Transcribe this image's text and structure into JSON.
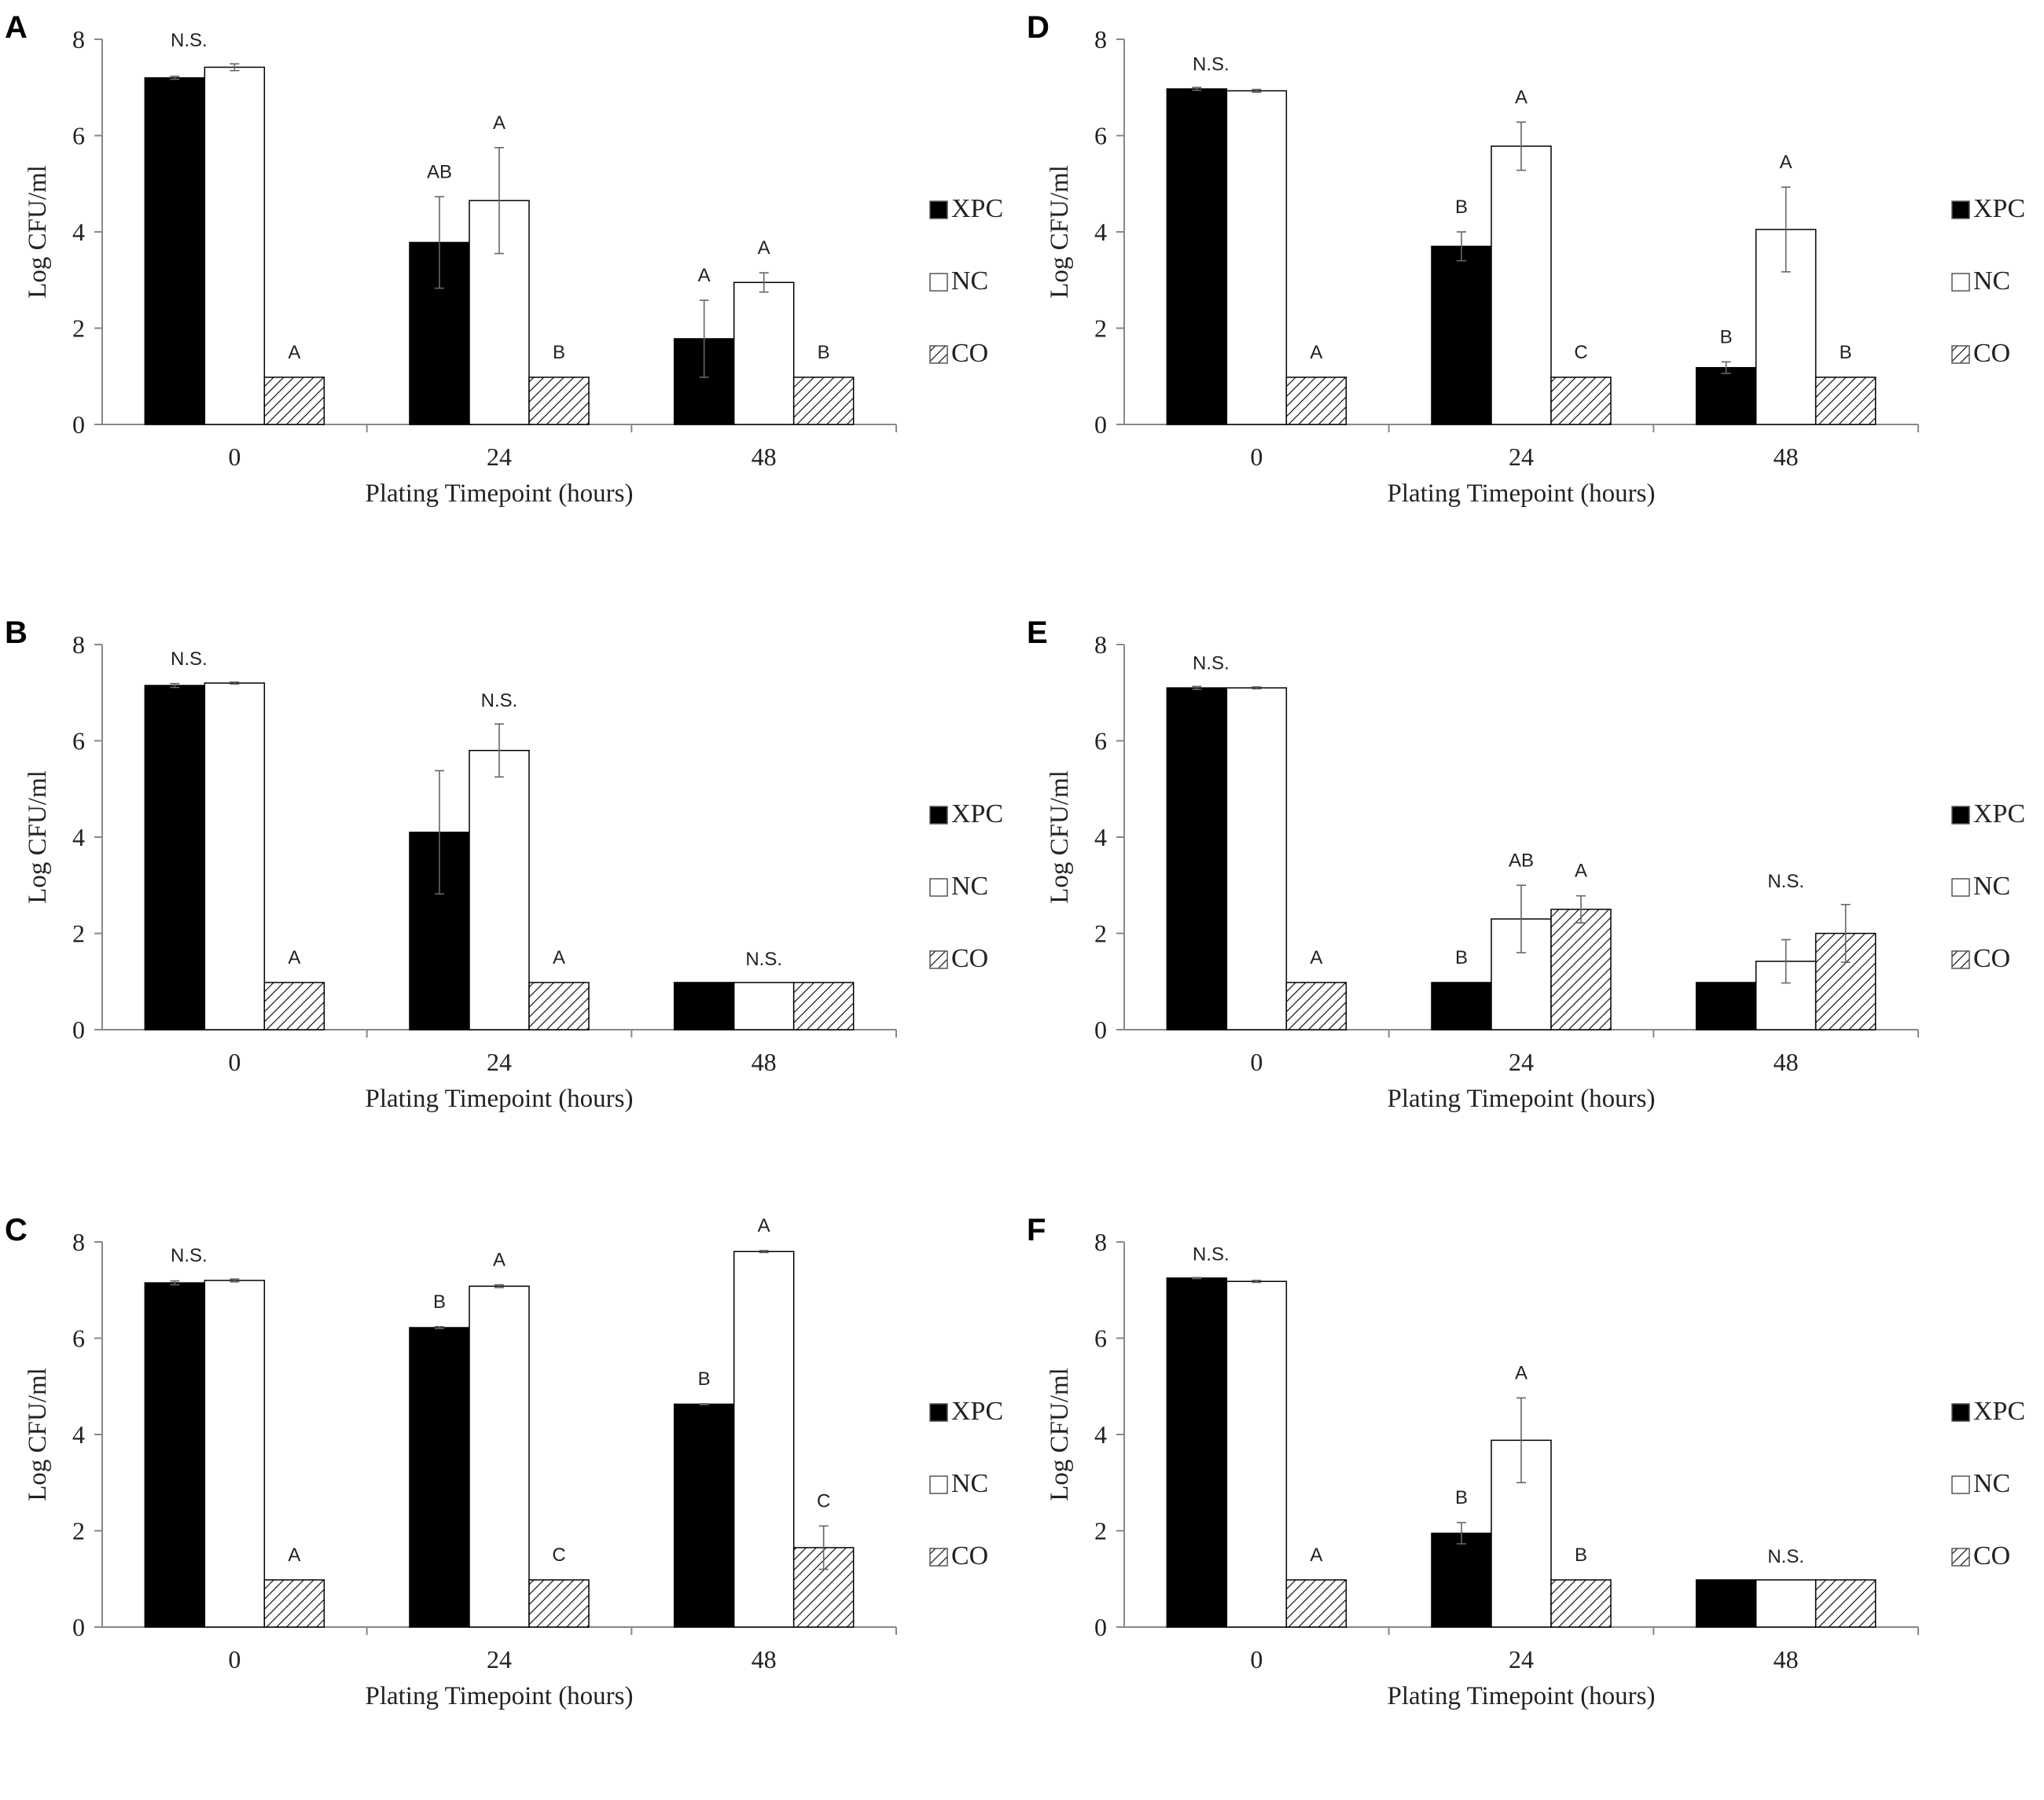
{
  "chart_data": [
    {
      "panel": "A",
      "type": "bar",
      "categories": [
        "0",
        "24",
        "48"
      ],
      "series": [
        {
          "name": "XPC",
          "values": [
            7.2,
            3.78,
            1.78
          ],
          "errors": [
            0.03,
            0.95,
            0.8
          ]
        },
        {
          "name": "NC",
          "values": [
            7.42,
            4.65,
            2.95
          ],
          "errors": [
            0.07,
            1.1,
            0.2
          ]
        },
        {
          "name": "CO",
          "values": [
            0.98,
            0.98,
            0.98
          ],
          "errors": [
            0,
            0,
            0
          ]
        }
      ],
      "labels": {
        "0": [
          "N.S."
        ],
        "24": [
          "AB",
          "A",
          "B"
        ],
        "48": [
          "A",
          "A",
          "B"
        ]
      },
      "label0_co": "A",
      "xlabel": "Plating Timepoint (hours)",
      "ylabel": "Log CFU/ml",
      "ylim": [
        0,
        8
      ],
      "yticks": [
        "0",
        "2",
        "4",
        "6",
        "8"
      ]
    },
    {
      "panel": "B",
      "type": "bar",
      "categories": [
        "0",
        "24",
        "48"
      ],
      "series": [
        {
          "name": "XPC",
          "values": [
            7.15,
            4.1,
            0.98
          ],
          "errors": [
            0.04,
            1.28,
            0
          ]
        },
        {
          "name": "NC",
          "values": [
            7.2,
            5.8,
            0.98
          ],
          "errors": [
            0.02,
            0.55,
            0
          ]
        },
        {
          "name": "CO",
          "values": [
            0.98,
            0.98,
            0.98
          ],
          "errors": [
            0,
            0,
            0
          ]
        }
      ],
      "labels": {
        "0": [
          "N.S."
        ],
        "24": [
          "N.S."
        ],
        "48": [
          "N.S."
        ]
      },
      "label0_co": "A",
      "label24_co": "A",
      "xlabel": "Plating Timepoint (hours)",
      "ylabel": "Log CFU/ml",
      "ylim": [
        0,
        8
      ],
      "yticks": [
        "0",
        "2",
        "4",
        "6",
        "8"
      ]
    },
    {
      "panel": "C",
      "type": "bar",
      "categories": [
        "0",
        "24",
        "48"
      ],
      "series": [
        {
          "name": "XPC",
          "values": [
            7.15,
            6.22,
            4.63
          ],
          "errors": [
            0.04,
            0.02,
            0.01
          ]
        },
        {
          "name": "NC",
          "values": [
            7.2,
            7.08,
            7.8
          ],
          "errors": [
            0.03,
            0.03,
            0.02
          ]
        },
        {
          "name": "CO",
          "values": [
            0.98,
            0.98,
            1.65
          ],
          "errors": [
            0,
            0,
            0.45
          ]
        }
      ],
      "labels": {
        "0": [
          "N.S."
        ],
        "24": [
          "B",
          "A",
          "C"
        ],
        "48": [
          "B",
          "A",
          "C"
        ]
      },
      "label0_co": "A",
      "xlabel": "Plating Timepoint (hours)",
      "ylabel": "Log CFU/ml",
      "ylim": [
        0,
        8
      ],
      "yticks": [
        "0",
        "2",
        "4",
        "6",
        "8"
      ]
    },
    {
      "panel": "D",
      "type": "bar",
      "categories": [
        "0",
        "24",
        "48"
      ],
      "series": [
        {
          "name": "XPC",
          "values": [
            6.97,
            3.7,
            1.18
          ],
          "errors": [
            0.03,
            0.3,
            0.12
          ]
        },
        {
          "name": "NC",
          "values": [
            6.93,
            5.78,
            4.05
          ],
          "errors": [
            0.03,
            0.5,
            0.88
          ]
        },
        {
          "name": "CO",
          "values": [
            0.98,
            0.98,
            0.98
          ],
          "errors": [
            0,
            0,
            0
          ]
        }
      ],
      "labels": {
        "0": [
          "N.S."
        ],
        "24": [
          "B",
          "A",
          "C"
        ],
        "48": [
          "B",
          "A",
          "B"
        ]
      },
      "label0_co": "A",
      "xlabel": "Plating Timepoint (hours)",
      "ylabel": "Log CFU/ml",
      "ylim": [
        0,
        8
      ],
      "yticks": [
        "0",
        "2",
        "4",
        "6",
        "8"
      ]
    },
    {
      "panel": "E",
      "type": "bar",
      "categories": [
        "0",
        "24",
        "48"
      ],
      "series": [
        {
          "name": "XPC",
          "values": [
            7.1,
            0.98,
            0.98
          ],
          "errors": [
            0.03,
            0,
            0
          ]
        },
        {
          "name": "NC",
          "values": [
            7.1,
            2.3,
            1.42
          ],
          "errors": [
            0.02,
            0.7,
            0.45
          ]
        },
        {
          "name": "CO",
          "values": [
            0.98,
            2.5,
            2.0
          ],
          "errors": [
            0,
            0.28,
            0.6
          ]
        }
      ],
      "labels": {
        "0": [
          "N.S."
        ],
        "24": [
          "B",
          "AB",
          "A"
        ],
        "48": [
          "N.S."
        ]
      },
      "label0_co": "A",
      "xlabel": "Plating Timepoint (hours)",
      "ylabel": "Log CFU/ml",
      "ylim": [
        0,
        8
      ],
      "yticks": [
        "0",
        "2",
        "4",
        "6",
        "8"
      ]
    },
    {
      "panel": "F",
      "type": "bar",
      "categories": [
        "0",
        "24",
        "48"
      ],
      "series": [
        {
          "name": "XPC",
          "values": [
            7.25,
            1.95,
            0.98
          ],
          "errors": [
            0.01,
            0.22,
            0
          ]
        },
        {
          "name": "NC",
          "values": [
            7.18,
            3.88,
            0.98
          ],
          "errors": [
            0.02,
            0.88,
            0
          ]
        },
        {
          "name": "CO",
          "values": [
            0.98,
            0.98,
            0.98
          ],
          "errors": [
            0,
            0,
            0
          ]
        }
      ],
      "labels": {
        "0": [
          "N.S."
        ],
        "24": [
          "B",
          "A",
          "B"
        ],
        "48": [
          "N.S."
        ]
      },
      "label0_co": "A",
      "xlabel": "Plating Timepoint (hours)",
      "ylabel": "Log CFU/ml",
      "ylim": [
        0,
        8
      ],
      "yticks": [
        "0",
        "2",
        "4",
        "6",
        "8"
      ]
    }
  ]
}
